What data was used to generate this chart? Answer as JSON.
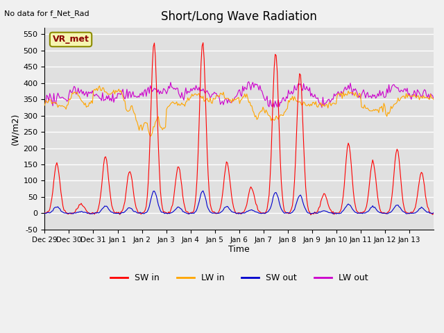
{
  "title": "Short/Long Wave Radiation",
  "subtitle": "No data for f_Net_Rad",
  "xlabel": "Time",
  "ylabel": "(W/m2)",
  "ylim": [
    -50,
    570
  ],
  "yticks": [
    -50,
    0,
    50,
    100,
    150,
    200,
    250,
    300,
    350,
    400,
    450,
    500,
    550
  ],
  "xtick_labels": [
    "Dec 29",
    "Dec 30",
    "Dec 31",
    "Jan 1",
    "Jan 2",
    "Jan 3",
    "Jan 4",
    "Jan 5",
    "Jan 6",
    "Jan 7",
    "Jan 8",
    "Jan 9",
    "Jan 10",
    "Jan 11",
    "Jan 12",
    "Jan 13"
  ],
  "n_days": 16,
  "colors": {
    "SW_in": "#ff0000",
    "LW_in": "#ffa500",
    "SW_out": "#0000cd",
    "LW_out": "#cc00cc"
  },
  "legend_labels": [
    "SW in",
    "LW in",
    "SW out",
    "LW out"
  ],
  "annotation_box": "VR_met",
  "bg_color": "#e0e0e0",
  "grid_color": "#ffffff",
  "peak_heights": [
    155,
    30,
    175,
    130,
    525,
    145,
    525,
    155,
    80,
    495,
    430,
    60,
    215,
    160,
    200,
    125
  ]
}
